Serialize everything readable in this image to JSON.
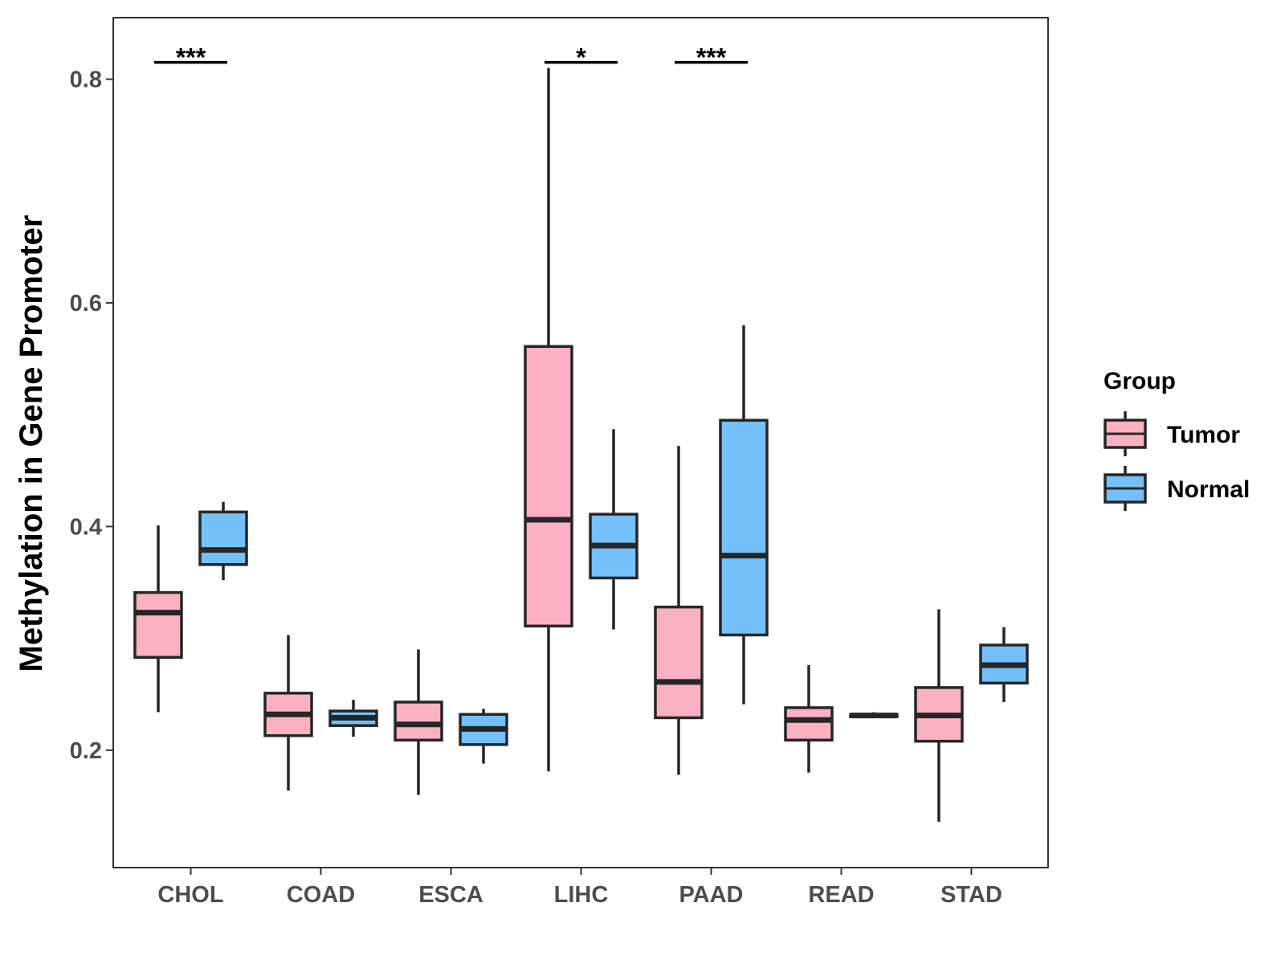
{
  "chart_data": {
    "type": "boxplot",
    "title": "",
    "xlabel": "",
    "ylabel": "Methylation in Gene Promoter",
    "ylim": [
      0.095,
      0.855
    ],
    "yticks": [
      "0.2",
      "0.4",
      "0.6",
      "0.8"
    ],
    "ytick_values": [
      0.2,
      0.4,
      0.6,
      0.8
    ],
    "categories": [
      "CHOL",
      "COAD",
      "ESCA",
      "LIHC",
      "PAAD",
      "READ",
      "STAD"
    ],
    "legend": {
      "title": "Group",
      "position": "right",
      "entries": [
        {
          "label": "Tumor",
          "color": "#FBB1C2"
        },
        {
          "label": "Normal",
          "color": "#73C0FA"
        }
      ]
    },
    "series": [
      {
        "name": "Tumor",
        "color": "#FBB1C2",
        "boxes": [
          {
            "category": "CHOL",
            "min": 0.234,
            "q1": 0.283,
            "median": 0.323,
            "q3": 0.341,
            "max": 0.401
          },
          {
            "category": "COAD",
            "min": 0.164,
            "q1": 0.213,
            "median": 0.232,
            "q3": 0.251,
            "max": 0.303
          },
          {
            "category": "ESCA",
            "min": 0.16,
            "q1": 0.209,
            "median": 0.223,
            "q3": 0.243,
            "max": 0.29
          },
          {
            "category": "LIHC",
            "min": 0.181,
            "q1": 0.311,
            "median": 0.406,
            "q3": 0.561,
            "max": 0.81
          },
          {
            "category": "PAAD",
            "min": 0.178,
            "q1": 0.229,
            "median": 0.261,
            "q3": 0.328,
            "max": 0.472
          },
          {
            "category": "READ",
            "min": 0.18,
            "q1": 0.209,
            "median": 0.227,
            "q3": 0.238,
            "max": 0.276
          },
          {
            "category": "STAD",
            "min": 0.136,
            "q1": 0.208,
            "median": 0.231,
            "q3": 0.256,
            "max": 0.326
          }
        ]
      },
      {
        "name": "Normal",
        "color": "#73C0FA",
        "boxes": [
          {
            "category": "CHOL",
            "min": 0.352,
            "q1": 0.366,
            "median": 0.379,
            "q3": 0.413,
            "max": 0.422
          },
          {
            "category": "COAD",
            "min": 0.212,
            "q1": 0.222,
            "median": 0.229,
            "q3": 0.235,
            "max": 0.245
          },
          {
            "category": "ESCA",
            "min": 0.188,
            "q1": 0.205,
            "median": 0.219,
            "q3": 0.232,
            "max": 0.237
          },
          {
            "category": "LIHC",
            "min": 0.308,
            "q1": 0.354,
            "median": 0.383,
            "q3": 0.411,
            "max": 0.487
          },
          {
            "category": "PAAD",
            "min": 0.241,
            "q1": 0.303,
            "median": 0.374,
            "q3": 0.495,
            "max": 0.58
          },
          {
            "category": "READ",
            "min": 0.229,
            "q1": 0.23,
            "median": 0.231,
            "q3": 0.232,
            "max": 0.234
          },
          {
            "category": "STAD",
            "min": 0.243,
            "q1": 0.26,
            "median": 0.276,
            "q3": 0.294,
            "max": 0.31
          }
        ]
      }
    ],
    "annotations": [
      {
        "category": "CHOL",
        "label": "***",
        "y": 0.815
      },
      {
        "category": "LIHC",
        "label": "*",
        "y": 0.815
      },
      {
        "category": "PAAD",
        "label": "***",
        "y": 0.815
      }
    ]
  }
}
